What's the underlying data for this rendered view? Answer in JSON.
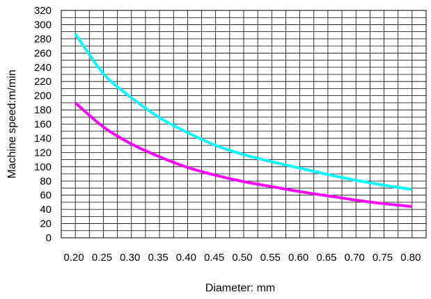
{
  "chart_data": {
    "type": "line",
    "title": "",
    "xlabel": "Diameter: mm",
    "ylabel": "Machine speed:m/min",
    "xlim": [
      0.175,
      0.825
    ],
    "ylim": [
      0,
      320
    ],
    "x_ticks": [
      "0.20",
      "0.25",
      "0.30",
      "0.35",
      "0.40",
      "0.45",
      "0.50",
      "0.55",
      "0.60",
      "0.65",
      "0.70",
      "0.75",
      "0.80"
    ],
    "y_ticks": [
      "0",
      "20",
      "40",
      "60",
      "80",
      "100",
      "120",
      "140",
      "160",
      "180",
      "200",
      "220",
      "240",
      "260",
      "280",
      "300",
      "320"
    ],
    "grid": true,
    "legend": "none",
    "x": [
      0.2,
      0.25,
      0.3,
      0.35,
      0.4,
      0.45,
      0.5,
      0.55,
      0.6,
      0.65,
      0.7,
      0.75,
      0.8
    ],
    "series": [
      {
        "color": "#00ffff",
        "values": [
          287,
          231,
          197,
          169,
          148,
          130,
          117,
          107,
          98,
          89,
          81,
          74,
          68
        ]
      },
      {
        "color": "#ff00ff",
        "values": [
          190,
          156,
          132,
          114,
          99,
          88,
          79,
          72,
          65,
          59,
          53,
          48,
          44
        ]
      }
    ]
  }
}
